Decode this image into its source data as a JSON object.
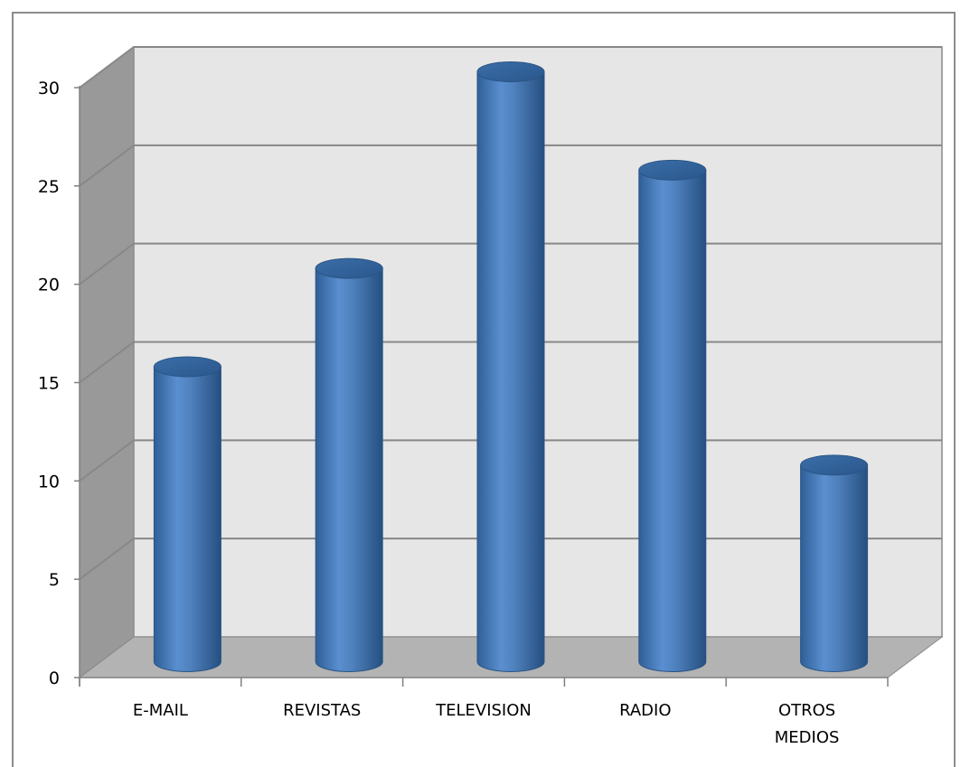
{
  "chart_data": {
    "type": "bar",
    "style": "3d-cylinder",
    "categories": [
      "E-MAIL",
      "REVISTAS",
      "TELEVISION",
      "RADIO",
      "OTROS MEDIOS"
    ],
    "category_lines": [
      [
        "E-MAIL"
      ],
      [
        "REVISTAS"
      ],
      [
        "TELEVISION"
      ],
      [
        "RADIO"
      ],
      [
        "OTROS",
        "MEDIOS"
      ]
    ],
    "series": [
      {
        "values": [
          15,
          20,
          30,
          25,
          10
        ]
      }
    ],
    "ylim": [
      0,
      30
    ],
    "yticks": [
      0,
      5,
      10,
      15,
      20,
      25,
      30
    ],
    "grid": true,
    "legend": "none",
    "title": "",
    "xlabel": "",
    "ylabel": "",
    "colors": {
      "bar": "#4f81bd",
      "bar_dark": "#2c5a8f",
      "bar_light": "#7fa8dc",
      "back_wall": "#e6e6e6",
      "side_wall": "#999999",
      "floor": "#b3b3b3",
      "grid": "#888888"
    }
  }
}
